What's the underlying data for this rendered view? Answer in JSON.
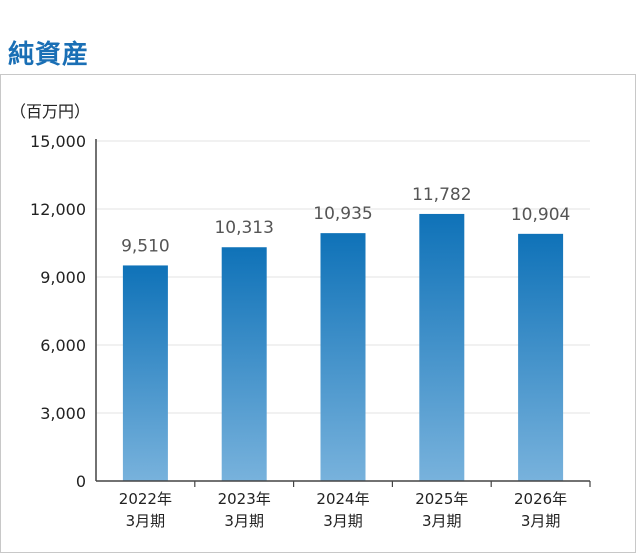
{
  "page": {
    "title": "純資産"
  },
  "chart_data": {
    "type": "bar",
    "unit": "（百万円）",
    "categories": [
      {
        "line1": "2022年",
        "line2": "3月期"
      },
      {
        "line1": "2023年",
        "line2": "3月期"
      },
      {
        "line1": "2024年",
        "line2": "3月期"
      },
      {
        "line1": "2025年",
        "line2": "3月期"
      },
      {
        "line1": "2026年",
        "line2": "3月期"
      }
    ],
    "values": [
      9510,
      10313,
      10935,
      11782,
      10904
    ],
    "value_labels": [
      "9,510",
      "10,313",
      "10,935",
      "11,782",
      "10,904"
    ],
    "ylim": [
      0,
      15000
    ],
    "yticks": [
      0,
      3000,
      6000,
      9000,
      12000,
      15000
    ],
    "ytick_labels": [
      "0",
      "3,000",
      "6,000",
      "9,000",
      "12,000",
      "15,000"
    ],
    "grid": true,
    "colors": {
      "bar_top": "#0f72b8",
      "bar_bottom": "#78b2dc",
      "title": "#1a6fb5"
    }
  }
}
